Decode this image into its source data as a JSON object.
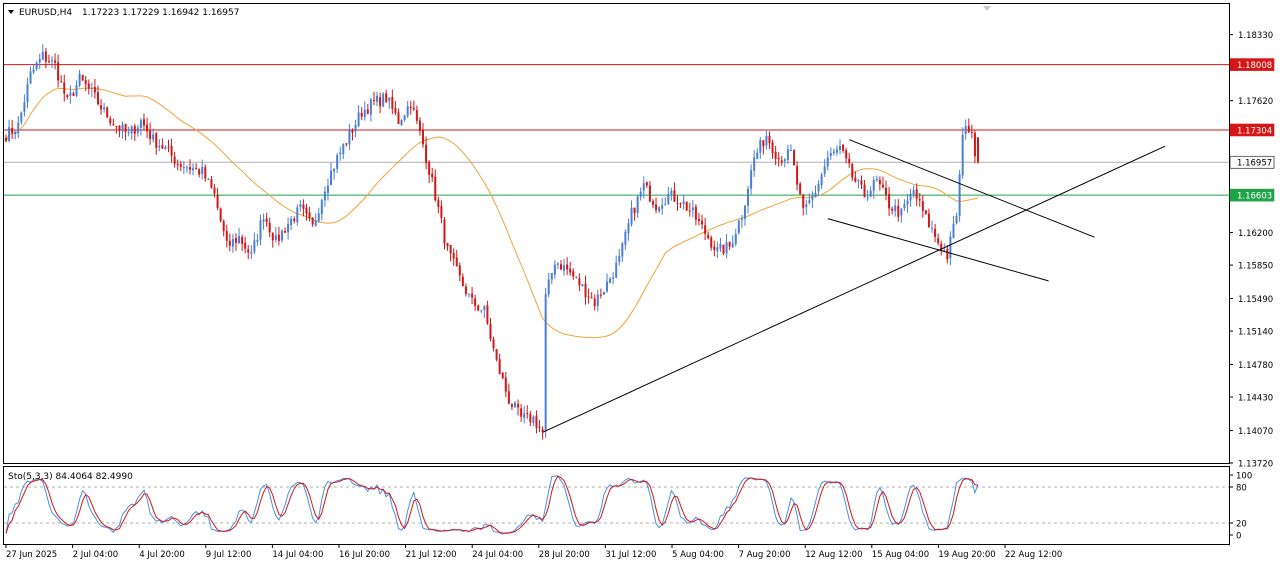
{
  "header": {
    "symbol": "EURUSD,H4",
    "values": "1.17223 1.17229 1.16942 1.16957"
  },
  "colors": {
    "bull": "#4a7fd6",
    "bear": "#d41616",
    "ma": "#f2a33a",
    "stoch_main": "#4a90e2",
    "stoch_signal": "#d41616",
    "resistance": "#d41616",
    "support": "#21a34a",
    "current_price": "#b0b0b0"
  },
  "chart_data": [
    {
      "type": "candlestick",
      "title": "EURUSD,H4",
      "ylim": [
        1.1372,
        1.1866
      ],
      "y_ticks": [
        "1.18330",
        "1.17620",
        "1.16200",
        "1.15850",
        "1.15490",
        "1.15140",
        "1.14780",
        "1.14430",
        "1.14070",
        "1.13720"
      ],
      "x_ticks": [
        "27 Jun 2025",
        "2 Jul 04:00",
        "4 Jul 20:00",
        "9 Jul 12:00",
        "14 Jul 04:00",
        "16 Jul 20:00",
        "21 Jul 12:00",
        "24 Jul 04:00",
        "28 Jul 20:00",
        "31 Jul 12:00",
        "5 Aug 04:00",
        "7 Aug 20:00",
        "12 Aug 12:00",
        "15 Aug 04:00",
        "19 Aug 20:00",
        "22 Aug 12:00"
      ],
      "horizontal_lines": [
        {
          "label": "1.18008",
          "value": 1.18008,
          "kind": "resistance"
        },
        {
          "label": "1.17304",
          "value": 1.17304,
          "kind": "resistance"
        },
        {
          "label": "1.16957",
          "value": 1.16957,
          "kind": "current_price"
        },
        {
          "label": "1.16603",
          "value": 1.16603,
          "kind": "support"
        }
      ],
      "trendlines": [
        {
          "from": [
            0,
            1.1405
          ],
          "to": [
            0,
            1.1713
          ]
        },
        {
          "from": [
            0,
            1.172
          ],
          "to": [
            0,
            1.1615
          ]
        },
        {
          "from": [
            0,
            1.1635
          ],
          "to": [
            0,
            1.1568
          ]
        }
      ],
      "waypoints": [
        [
          0,
          1.1725
        ],
        [
          4,
          1.1735
        ],
        [
          8,
          1.179
        ],
        [
          12,
          1.181
        ],
        [
          16,
          1.18
        ],
        [
          20,
          1.176
        ],
        [
          24,
          1.1785
        ],
        [
          28,
          1.177
        ],
        [
          32,
          1.175
        ],
        [
          36,
          1.1735
        ],
        [
          40,
          1.1725
        ],
        [
          44,
          1.174
        ],
        [
          48,
          1.172
        ],
        [
          52,
          1.171
        ],
        [
          56,
          1.1695
        ],
        [
          60,
          1.169
        ],
        [
          64,
          1.1685
        ],
        [
          68,
          1.166
        ],
        [
          72,
          1.1605
        ],
        [
          76,
          1.1615
        ],
        [
          80,
          1.1595
        ],
        [
          84,
          1.164
        ],
        [
          88,
          1.161
        ],
        [
          92,
          1.163
        ],
        [
          96,
          1.1645
        ],
        [
          100,
          1.1625
        ],
        [
          104,
          1.167
        ],
        [
          108,
          1.17
        ],
        [
          112,
          1.1725
        ],
        [
          116,
          1.175
        ],
        [
          120,
          1.176
        ],
        [
          124,
          1.1765
        ],
        [
          128,
          1.174
        ],
        [
          132,
          1.176
        ],
        [
          136,
          1.1715
        ],
        [
          140,
          1.166
        ],
        [
          144,
          1.16
        ],
        [
          148,
          1.157
        ],
        [
          152,
          1.1545
        ],
        [
          156,
          1.1535
        ],
        [
          160,
          1.148
        ],
        [
          164,
          1.144
        ],
        [
          168,
          1.142
        ],
        [
          172,
          1.142
        ],
        [
          175,
          1.1405
        ],
        [
          176,
          1.155
        ],
        [
          179,
          1.159
        ],
        [
          183,
          1.158
        ],
        [
          187,
          1.1565
        ],
        [
          192,
          1.1545
        ],
        [
          196,
          1.1565
        ],
        [
          200,
          1.159
        ],
        [
          204,
          1.164
        ],
        [
          208,
          1.167
        ],
        [
          212,
          1.165
        ],
        [
          216,
          1.166
        ],
        [
          220,
          1.1655
        ],
        [
          224,
          1.164
        ],
        [
          228,
          1.162
        ],
        [
          232,
          1.16
        ],
        [
          236,
          1.1605
        ],
        [
          240,
          1.164
        ],
        [
          244,
          1.17
        ],
        [
          248,
          1.1725
        ],
        [
          252,
          1.17
        ],
        [
          256,
          1.1705
        ],
        [
          260,
          1.164
        ],
        [
          264,
          1.1665
        ],
        [
          268,
          1.17
        ],
        [
          272,
          1.171
        ],
        [
          276,
          1.168
        ],
        [
          280,
          1.166
        ],
        [
          284,
          1.1675
        ],
        [
          288,
          1.165
        ],
        [
          292,
          1.164
        ],
        [
          296,
          1.1665
        ],
        [
          300,
          1.1635
        ],
        [
          304,
          1.161
        ],
        [
          307,
          1.1595
        ],
        [
          310,
          1.164
        ],
        [
          312,
          1.172
        ],
        [
          313,
          1.174
        ],
        [
          315,
          1.1722
        ],
        [
          317,
          1.1696
        ]
      ],
      "series": [
        {
          "name": "EURUSD,H4",
          "values": "candles"
        }
      ]
    },
    {
      "type": "line",
      "title": "Sto(5,3,3) 84.4064 82.4990",
      "ylim": [
        0,
        100
      ],
      "y_ticks": [
        "100",
        "80",
        "20",
        "0"
      ],
      "levels": [
        20,
        80
      ],
      "series": [
        {
          "name": "Sto(5,3,3) main",
          "last": 84.4064
        },
        {
          "name": "Sto(5,3,3) signal",
          "last": 82.499
        }
      ]
    }
  ]
}
